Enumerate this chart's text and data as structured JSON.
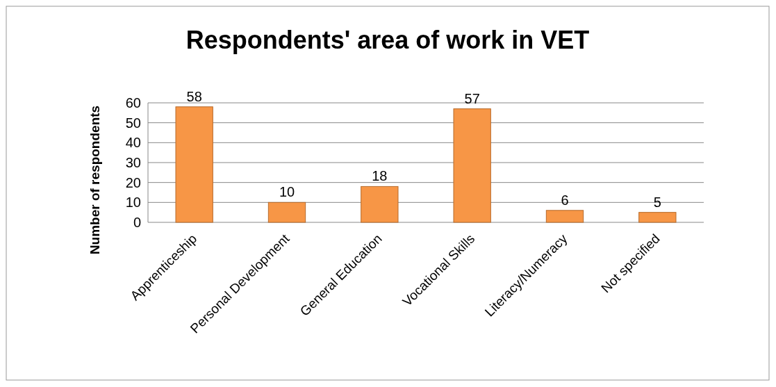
{
  "chart_data": {
    "type": "bar",
    "title": "Respondents' area of work in VET",
    "ylabel": "Number of respondents",
    "categories": [
      "Apprenticeship",
      "Personal Development",
      "General Education",
      "Vocational Skills",
      "Literacy/Numeracy",
      "Not specified"
    ],
    "values": [
      58,
      10,
      18,
      57,
      6,
      5
    ],
    "color": "#f79646",
    "ylim": [
      0,
      60
    ],
    "yticks": [
      0,
      10,
      20,
      30,
      40,
      50,
      60
    ],
    "grid": "y",
    "data_labels": true
  }
}
